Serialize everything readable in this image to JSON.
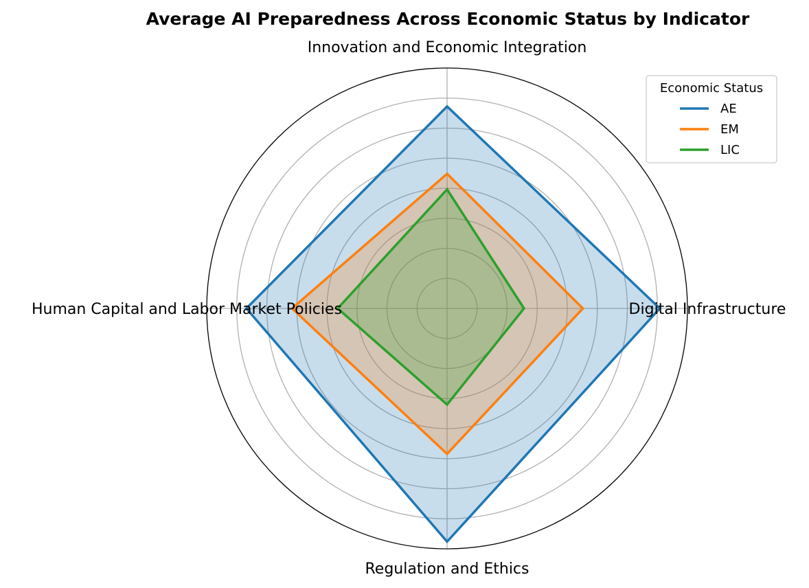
{
  "chart_data": {
    "type": "radar",
    "title": "Average AI Preparedness Across Economic Status by Indicator",
    "categories": [
      "Digital Infrastructure",
      "Innovation and Economic Integration",
      "Human Capital and Labor Market Policies",
      "Regulation and Ethics"
    ],
    "series": [
      {
        "name": "AE",
        "values": [
          0.177,
          0.168,
          0.167,
          0.194
        ],
        "color": "#1f77b4"
      },
      {
        "name": "EM",
        "values": [
          0.113,
          0.112,
          0.129,
          0.121
        ],
        "color": "#ff7f0e"
      },
      {
        "name": "LIC",
        "values": [
          0.064,
          0.099,
          0.091,
          0.08
        ],
        "color": "#2ca02c"
      }
    ],
    "rlim": [
      0,
      0.2
    ],
    "grid": true,
    "legend": {
      "title": "Economic Status",
      "placement": "top-right"
    }
  }
}
